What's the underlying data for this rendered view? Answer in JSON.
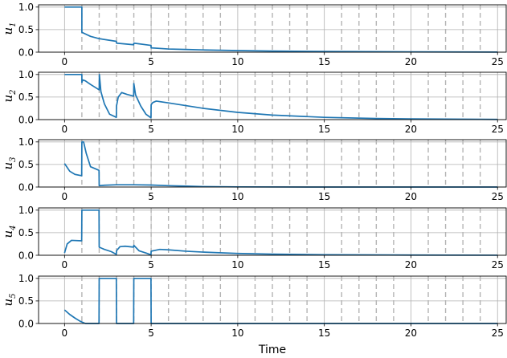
{
  "figure": {
    "xlabel": "Time"
  },
  "chart_data": [
    {
      "type": "line",
      "ylabel_main": "u",
      "ylabel_sub": "1",
      "xlim": [
        -1.5,
        25.5
      ],
      "ylim": [
        0,
        1.05
      ],
      "xticks": [
        "0",
        "5",
        "10",
        "15",
        "20",
        "25"
      ],
      "yticks": [
        "0.0",
        "0.5",
        "1.0"
      ],
      "grid": true,
      "dashed_vlines": [
        1,
        2,
        3,
        4,
        5,
        6,
        7,
        8,
        9,
        11,
        12,
        13,
        14,
        16,
        17,
        18,
        19,
        21,
        22,
        23,
        24
      ],
      "series": [
        {
          "color": "#1f77b4",
          "x": [
            0,
            1,
            1,
            1.5,
            2,
            2.99,
            3,
            3.99,
            4,
            4.99,
            5,
            6,
            7,
            8,
            10,
            12,
            15,
            20,
            25
          ],
          "y": [
            1.0,
            1.0,
            0.44,
            0.35,
            0.3,
            0.24,
            0.2,
            0.165,
            0.2,
            0.15,
            0.095,
            0.07,
            0.06,
            0.05,
            0.035,
            0.025,
            0.015,
            0.006,
            0.002
          ]
        }
      ]
    },
    {
      "type": "line",
      "ylabel_main": "u",
      "ylabel_sub": "2",
      "xlim": [
        -1.5,
        25.5
      ],
      "ylim": [
        0,
        1.05
      ],
      "xticks": [
        "0",
        "5",
        "10",
        "15",
        "20",
        "25"
      ],
      "yticks": [
        "0.0",
        "0.5",
        "1.0"
      ],
      "grid": true,
      "dashed_vlines": [
        1,
        2,
        3,
        4,
        5,
        6,
        7,
        8,
        9,
        11,
        12,
        13,
        14,
        16,
        17,
        18,
        19,
        21,
        22,
        23,
        24
      ],
      "series": [
        {
          "color": "#1f77b4",
          "x": [
            0,
            1,
            1,
            1.05,
            1.2,
            1.5,
            2,
            2.01,
            2.1,
            2.3,
            2.6,
            2.99,
            3,
            3.1,
            3.3,
            3.6,
            3.99,
            4,
            4.1,
            4.4,
            4.7,
            4.99,
            5,
            5.1,
            5.3,
            6,
            7,
            8,
            10,
            12,
            15,
            18,
            20,
            25
          ],
          "y": [
            1.0,
            1.0,
            0.82,
            0.88,
            0.86,
            0.78,
            0.66,
            1.0,
            0.62,
            0.35,
            0.12,
            0.05,
            0.3,
            0.5,
            0.6,
            0.56,
            0.52,
            0.8,
            0.55,
            0.3,
            0.12,
            0.04,
            0.33,
            0.38,
            0.41,
            0.37,
            0.31,
            0.25,
            0.16,
            0.1,
            0.05,
            0.025,
            0.015,
            0.005
          ]
        }
      ]
    },
    {
      "type": "line",
      "ylabel_main": "u",
      "ylabel_sub": "3",
      "xlim": [
        -1.5,
        25.5
      ],
      "ylim": [
        0,
        1.05
      ],
      "xticks": [
        "0",
        "5",
        "10",
        "15",
        "20",
        "25"
      ],
      "yticks": [
        "0.0",
        "0.5",
        "1.0"
      ],
      "grid": true,
      "dashed_vlines": [
        1,
        2,
        3,
        4,
        5,
        6,
        7,
        8,
        9,
        11,
        12,
        13,
        14,
        16,
        17,
        18,
        19,
        21,
        22,
        23,
        24
      ],
      "series": [
        {
          "color": "#1f77b4",
          "x": [
            0,
            0.3,
            0.6,
            0.99,
            1,
            1.1,
            1.25,
            1.5,
            1.99,
            2,
            2.3,
            3,
            4,
            5,
            6,
            7,
            8,
            10,
            15,
            20,
            25
          ],
          "y": [
            0.52,
            0.35,
            0.28,
            0.25,
            1.0,
            1.0,
            0.75,
            0.45,
            0.37,
            0.03,
            0.04,
            0.05,
            0.05,
            0.045,
            0.03,
            0.02,
            0.01,
            0.003,
            0.0,
            0.0,
            0.0
          ]
        }
      ]
    },
    {
      "type": "line",
      "ylabel_main": "u",
      "ylabel_sub": "4",
      "xlim": [
        -1.5,
        25.5
      ],
      "ylim": [
        0,
        1.05
      ],
      "xticks": [
        "0",
        "5",
        "10",
        "15",
        "20",
        "25"
      ],
      "yticks": [
        "0.0",
        "0.5",
        "1.0"
      ],
      "grid": true,
      "dashed_vlines": [
        1,
        2,
        3,
        4,
        5,
        6,
        7,
        8,
        9,
        11,
        12,
        13,
        14,
        16,
        17,
        18,
        19,
        21,
        22,
        23,
        24
      ],
      "series": [
        {
          "color": "#1f77b4",
          "x": [
            0,
            0.15,
            0.4,
            0.99,
            1,
            1.99,
            2,
            2.3,
            2.7,
            2.99,
            3,
            3.2,
            3.5,
            3.99,
            4,
            4.3,
            4.7,
            4.99,
            5,
            5.5,
            6,
            7,
            8,
            10,
            12,
            15,
            20,
            25
          ],
          "y": [
            0.05,
            0.25,
            0.33,
            0.32,
            1.0,
            1.0,
            0.18,
            0.13,
            0.08,
            0.02,
            0.1,
            0.19,
            0.2,
            0.18,
            0.22,
            0.1,
            0.05,
            0.01,
            0.09,
            0.13,
            0.12,
            0.09,
            0.07,
            0.04,
            0.025,
            0.012,
            0.004,
            0.001
          ]
        }
      ]
    },
    {
      "type": "line",
      "ylabel_main": "u",
      "ylabel_sub": "5",
      "xlim": [
        -1.5,
        25.5
      ],
      "ylim": [
        0,
        1.05
      ],
      "xticks": [
        "0",
        "5",
        "10",
        "15",
        "20",
        "25"
      ],
      "yticks": [
        "0.0",
        "0.5",
        "1.0"
      ],
      "grid": true,
      "dashed_vlines": [
        1,
        2,
        3,
        4,
        5,
        6,
        7,
        8,
        9,
        11,
        12,
        13,
        14,
        16,
        17,
        18,
        19,
        21,
        22,
        23,
        24
      ],
      "series": [
        {
          "color": "#1f77b4",
          "x": [
            0,
            0.3,
            0.6,
            0.9,
            1.2,
            1.99,
            2,
            2.99,
            3,
            3.99,
            4,
            4.99,
            5,
            25
          ],
          "y": [
            0.3,
            0.2,
            0.12,
            0.05,
            0.0,
            0.0,
            1.0,
            1.0,
            0.0,
            0.0,
            1.0,
            1.0,
            0.0,
            0.0
          ]
        }
      ]
    }
  ]
}
